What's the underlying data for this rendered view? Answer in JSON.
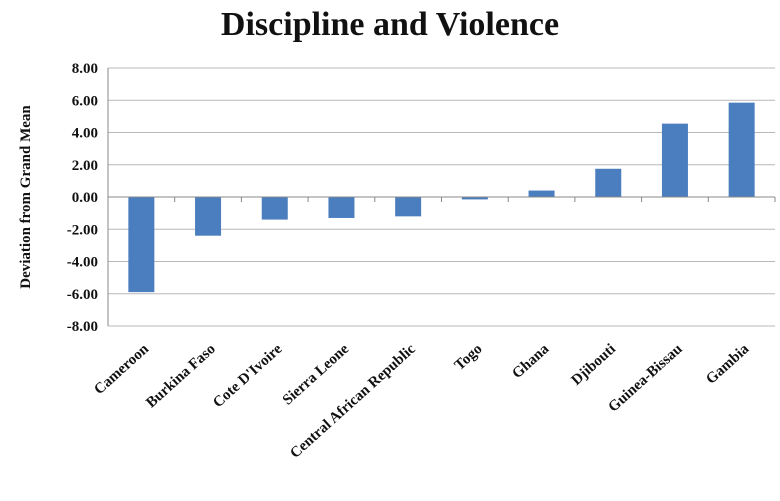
{
  "chart_data": {
    "type": "bar",
    "title": "Discipline and Violence",
    "xlabel": "",
    "ylabel": "Deviation from Grand Mean",
    "categories": [
      "Cameroon",
      "Burkina Faso",
      "Cote D'Ivoire",
      "Sierra Leone",
      "Central African Republic",
      "Togo",
      "Ghana",
      "Djibouti",
      "Guinea-Bissau",
      "Gambia"
    ],
    "values": [
      -5.9,
      -2.4,
      -1.4,
      -1.3,
      -1.2,
      -0.15,
      0.4,
      1.75,
      4.55,
      5.85
    ],
    "ylim": [
      -8,
      8
    ],
    "yticks": [
      "8.00",
      "6.00",
      "4.00",
      "2.00",
      "0.00",
      "-2.00",
      "-4.00",
      "-6.00",
      "-8.00"
    ],
    "grid": true,
    "legend": "none",
    "bar_color": "#4a7ebf"
  }
}
